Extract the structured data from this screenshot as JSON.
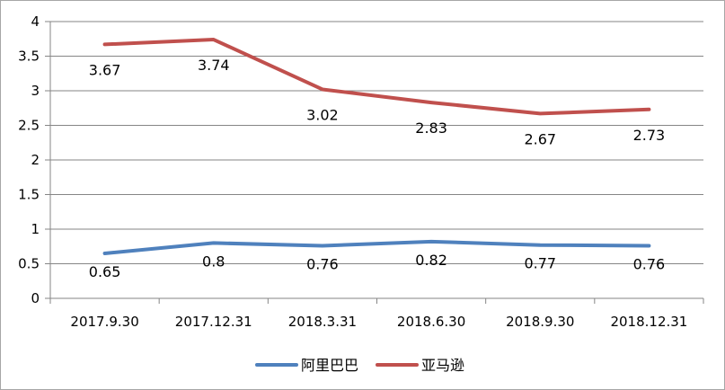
{
  "chart_data": {
    "type": "line",
    "title": "",
    "xlabel": "",
    "ylabel": "",
    "categories": [
      "2017.9.30",
      "2017.12.31",
      "2018.3.31",
      "2018.6.30",
      "2018.9.30",
      "2018.12.31"
    ],
    "ylim": [
      0,
      4
    ],
    "yticks": [
      0,
      0.5,
      1,
      1.5,
      2,
      2.5,
      3,
      3.5,
      4
    ],
    "ytick_labels": [
      "0",
      "0.5",
      "1",
      "1.5",
      "2",
      "2.5",
      "3",
      "3.5",
      "4"
    ],
    "grid": true,
    "legend_position": "bottom",
    "series": [
      {
        "name": "阿里巴巴",
        "color": "#4f81bd",
        "values": [
          0.65,
          0.8,
          0.76,
          0.82,
          0.77,
          0.76
        ],
        "labels": [
          "0.65",
          "0.8",
          "0.76",
          "0.82",
          "0.77",
          "0.76"
        ]
      },
      {
        "name": "亚马逊",
        "color": "#c0504d",
        "values": [
          3.67,
          3.74,
          3.02,
          2.83,
          2.67,
          2.73
        ],
        "labels": [
          "3.67",
          "3.74",
          "3.02",
          "2.83",
          "2.67",
          "2.73"
        ]
      }
    ]
  }
}
